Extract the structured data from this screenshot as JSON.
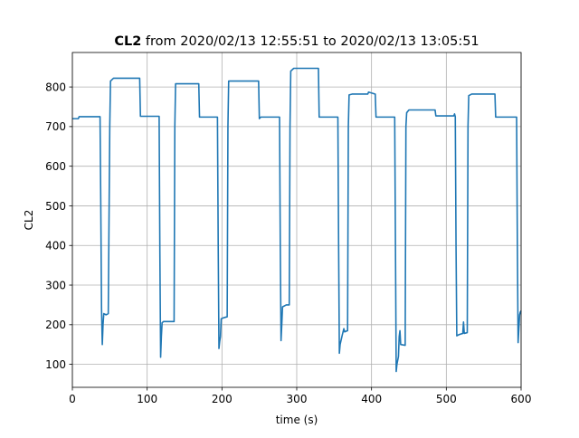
{
  "chart_data": {
    "type": "line",
    "title": {
      "bold": "CL2",
      "rest": " from 2020/02/13 12:55:51 to 2020/02/13 13:05:51"
    },
    "xlabel": "time (s)",
    "ylabel": "CL2",
    "xlim": [
      0,
      600
    ],
    "ylim": [
      42,
      887
    ],
    "x_ticks": [
      0,
      100,
      200,
      300,
      400,
      500,
      600
    ],
    "y_ticks": [
      100,
      200,
      300,
      400,
      500,
      600,
      700,
      800
    ],
    "grid": true,
    "series": [
      {
        "color": "#1f77b4",
        "points": [
          [
            0,
            720
          ],
          [
            8,
            720
          ],
          [
            9,
            725
          ],
          [
            37,
            725
          ],
          [
            38,
            500
          ],
          [
            39,
            240
          ],
          [
            40,
            150
          ],
          [
            41,
            200
          ],
          [
            42,
            228
          ],
          [
            45,
            225
          ],
          [
            48,
            228
          ],
          [
            50,
            700
          ],
          [
            51,
            815
          ],
          [
            55,
            822
          ],
          [
            90,
            822
          ],
          [
            91,
            726
          ],
          [
            116,
            726
          ],
          [
            117,
            380
          ],
          [
            118,
            118
          ],
          [
            119,
            170
          ],
          [
            120,
            205
          ],
          [
            122,
            208
          ],
          [
            136,
            208
          ],
          [
            137,
            700
          ],
          [
            138,
            808
          ],
          [
            169,
            808
          ],
          [
            170,
            724
          ],
          [
            194,
            724
          ],
          [
            195,
            400
          ],
          [
            196,
            140
          ],
          [
            197,
            158
          ],
          [
            198,
            170
          ],
          [
            199,
            215
          ],
          [
            203,
            218
          ],
          [
            207,
            220
          ],
          [
            208,
            700
          ],
          [
            209,
            815
          ],
          [
            249,
            815
          ],
          [
            250,
            720
          ],
          [
            252,
            724
          ],
          [
            277,
            724
          ],
          [
            278,
            400
          ],
          [
            279,
            160
          ],
          [
            280,
            200
          ],
          [
            281,
            245
          ],
          [
            286,
            250
          ],
          [
            290,
            250
          ],
          [
            291,
            700
          ],
          [
            292,
            840
          ],
          [
            296,
            847
          ],
          [
            329,
            847
          ],
          [
            330,
            724
          ],
          [
            355,
            724
          ],
          [
            356,
            400
          ],
          [
            357,
            128
          ],
          [
            358,
            150
          ],
          [
            361,
            175
          ],
          [
            363,
            190
          ],
          [
            364,
            182
          ],
          [
            368,
            185
          ],
          [
            369,
            700
          ],
          [
            370,
            780
          ],
          [
            374,
            782
          ],
          [
            395,
            782
          ],
          [
            396,
            787
          ],
          [
            405,
            782
          ],
          [
            406,
            724
          ],
          [
            431,
            724
          ],
          [
            432,
            400
          ],
          [
            433,
            82
          ],
          [
            434,
            100
          ],
          [
            436,
            120
          ],
          [
            437,
            170
          ],
          [
            438,
            185
          ],
          [
            439,
            150
          ],
          [
            445,
            148
          ],
          [
            446,
            700
          ],
          [
            447,
            735
          ],
          [
            450,
            742
          ],
          [
            485,
            742
          ],
          [
            486,
            727
          ],
          [
            510,
            727
          ],
          [
            511,
            732
          ],
          [
            512,
            725
          ],
          [
            513,
            400
          ],
          [
            514,
            172
          ],
          [
            517,
            175
          ],
          [
            522,
            178
          ],
          [
            523,
            207
          ],
          [
            524,
            178
          ],
          [
            528,
            180
          ],
          [
            529,
            700
          ],
          [
            530,
            778
          ],
          [
            534,
            782
          ],
          [
            565,
            782
          ],
          [
            566,
            724
          ],
          [
            594,
            724
          ],
          [
            595,
            400
          ],
          [
            596,
            155
          ],
          [
            597,
            190
          ],
          [
            598,
            225
          ],
          [
            599,
            232
          ],
          [
            600,
            235
          ]
        ]
      }
    ]
  }
}
